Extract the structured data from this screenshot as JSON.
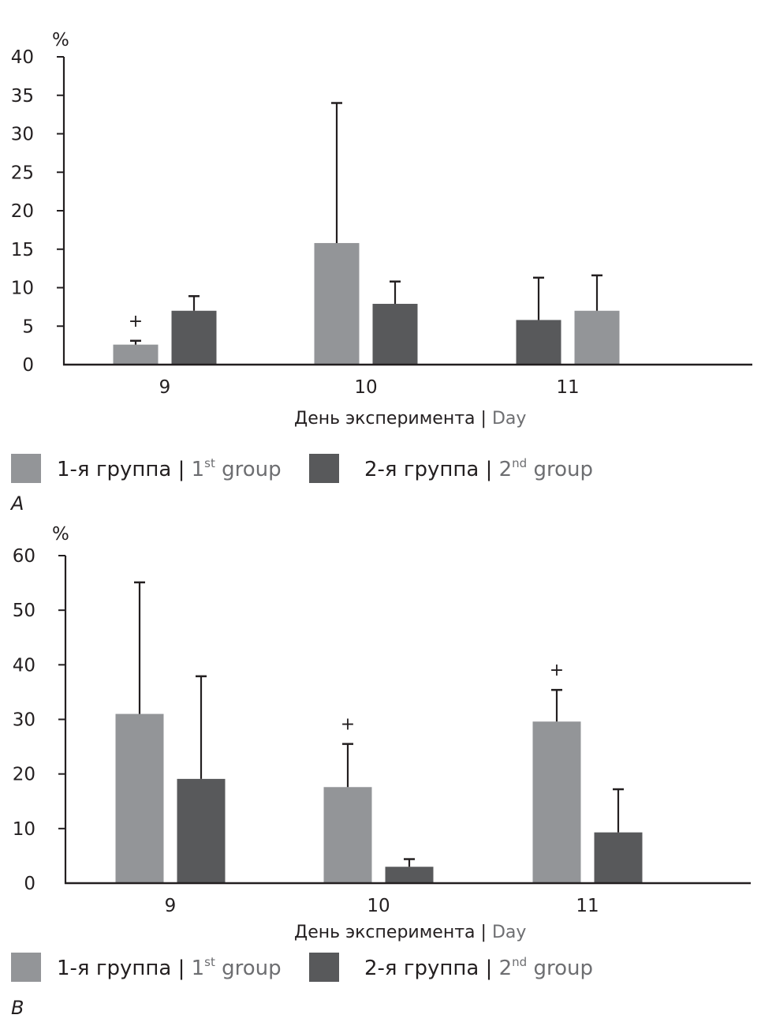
{
  "colors": {
    "group1": "#939598",
    "group2": "#58595b",
    "axis": "#231f20",
    "english_text": "#6d6e71"
  },
  "chart_data": [
    {
      "type": "bar",
      "panel": "A",
      "title": "",
      "unit_label": "%",
      "xlabel_ru": "День эксперимента",
      "xlabel_sep": " | ",
      "xlabel_en": "Day",
      "ylabel": "%",
      "ylim": [
        0,
        40
      ],
      "yticks": [
        0,
        5,
        10,
        15,
        20,
        25,
        30,
        35,
        40
      ],
      "categories": [
        "9",
        "10",
        "11"
      ],
      "grid": false,
      "legend_position": "bottom",
      "series": [
        {
          "name": "1-я группа | 1st group",
          "key": "group1",
          "values": [
            2.6,
            15.8,
            7.0
          ],
          "error_upper": [
            3.1,
            34.0,
            11.6
          ]
        },
        {
          "name": "2-я группа | 2nd group",
          "key": "group2",
          "values": [
            7.0,
            7.9,
            5.8
          ],
          "error_upper": [
            8.9,
            10.8,
            11.3
          ]
        }
      ],
      "bar_order_per_category": [
        [
          "group1",
          "group2"
        ],
        [
          "group1",
          "group2"
        ],
        [
          "group2",
          "group1"
        ]
      ],
      "annotations": [
        {
          "category": "9",
          "series": "group1",
          "text": "+"
        }
      ]
    },
    {
      "type": "bar",
      "panel": "B",
      "title": "",
      "unit_label": "%",
      "xlabel_ru": "День эксперимента",
      "xlabel_sep": " | ",
      "xlabel_en": "Day",
      "ylabel": "%",
      "ylim": [
        0,
        60
      ],
      "yticks": [
        0,
        10,
        20,
        30,
        40,
        50,
        60
      ],
      "categories": [
        "9",
        "10",
        "11"
      ],
      "grid": false,
      "legend_position": "bottom",
      "series": [
        {
          "name": "1-я группа | 1st group",
          "key": "group1",
          "values": [
            31.0,
            17.6,
            29.6
          ],
          "error_upper": [
            55.1,
            25.5,
            35.4
          ]
        },
        {
          "name": "2-я группа | 2nd group",
          "key": "group2",
          "values": [
            19.1,
            3.0,
            9.3
          ],
          "error_upper": [
            37.9,
            4.4,
            17.2
          ]
        }
      ],
      "bar_order_per_category": [
        [
          "group1",
          "group2"
        ],
        [
          "group1",
          "group2"
        ],
        [
          "group1",
          "group2"
        ]
      ],
      "annotations": [
        {
          "category": "10",
          "series": "group1",
          "text": "+"
        },
        {
          "category": "11",
          "series": "group1",
          "text": "+"
        }
      ]
    }
  ],
  "legend": [
    {
      "key": "group1",
      "ru": "1-я группа",
      "sep": " | ",
      "en_num": "1",
      "en_sup": "st",
      "en_word": " group"
    },
    {
      "key": "group2",
      "ru": "2-я группа",
      "sep": " | ",
      "en_num": "2",
      "en_sup": "nd",
      "en_word": " group"
    }
  ],
  "panel_labels": [
    "A",
    "B"
  ]
}
